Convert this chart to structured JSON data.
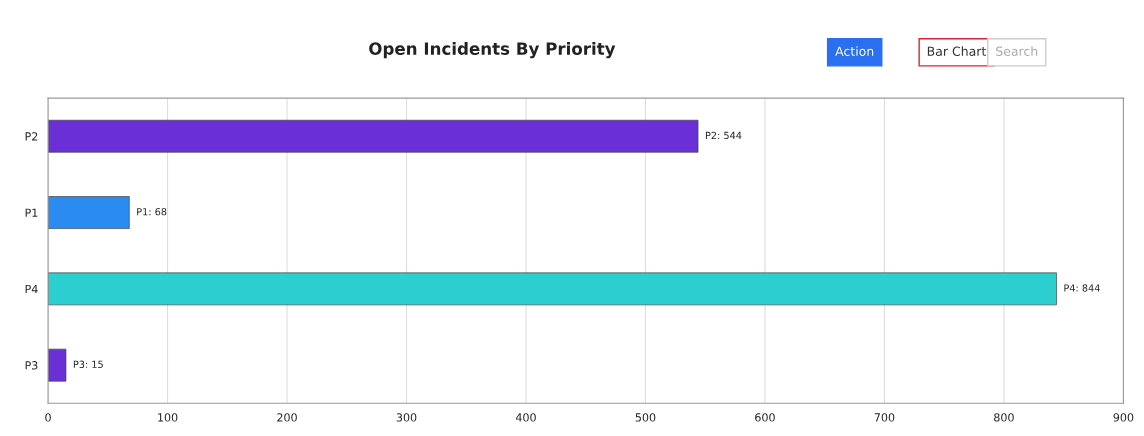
{
  "chart_data": {
    "type": "bar",
    "orientation": "horizontal",
    "title": "Open Incidents By Priority",
    "categories": [
      "P2",
      "P1",
      "P4",
      "P3"
    ],
    "values": [
      544,
      68,
      844,
      15
    ],
    "colors": [
      "#6a2fd6",
      "#2a8cf0",
      "#2ccfcf",
      "#6a2fd6"
    ],
    "value_labels": [
      "P2: 544",
      "P1: 68",
      "P4: 844",
      "P3: 15"
    ],
    "xlim": [
      0,
      900
    ],
    "xticks": [
      0,
      100,
      200,
      300,
      400,
      500,
      600,
      700,
      800,
      900
    ],
    "grid": "x",
    "legend": false,
    "annotations": [
      "Action",
      "Bar Chart",
      "Search"
    ]
  }
}
